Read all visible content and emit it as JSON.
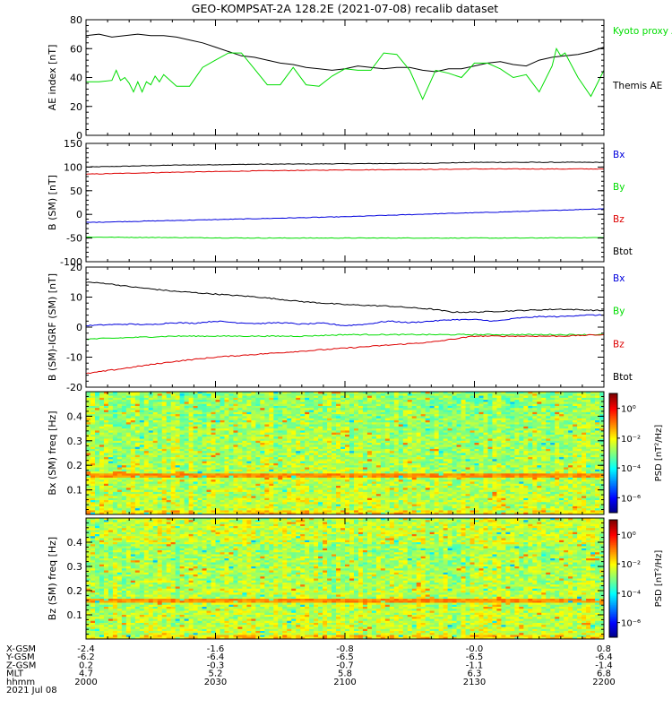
{
  "title": "GEO-KOMPSAT-2A 128.2E (2021-07-08) recalib dataset",
  "colors": {
    "black": "#000000",
    "green": "#00dd00",
    "red": "#dd0000",
    "blue": "#0000dd"
  },
  "x_axis": {
    "ticks": [
      "2000",
      "2030",
      "2100",
      "2130",
      "2200"
    ],
    "rows": [
      {
        "label": "X-GSM",
        "values": [
          "-2.4",
          "-1.6",
          "-0.8",
          "-0.0",
          "0.8"
        ]
      },
      {
        "label": "Y-GSM",
        "values": [
          "-6.2",
          "-6.4",
          "-6.5",
          "-6.5",
          "-6.4"
        ]
      },
      {
        "label": "Z-GSM",
        "values": [
          "0.2",
          "-0.3",
          "-0.7",
          "-1.1",
          "-1.4"
        ]
      },
      {
        "label": "MLT",
        "values": [
          "4.7",
          "5.2",
          "5.8",
          "6.3",
          "6.8"
        ]
      },
      {
        "label": "hhmm",
        "values": [
          "2000",
          "2030",
          "2100",
          "2130",
          "2200"
        ]
      }
    ],
    "date": "2021 Jul 08"
  },
  "chart_data": [
    {
      "type": "line",
      "ylabel": "AE index [nT]",
      "ylim": [
        0,
        80
      ],
      "yticks": [
        "0",
        "20",
        "40",
        "60",
        "80"
      ],
      "x_range_minutes": [
        0,
        120
      ],
      "legend": [
        {
          "text": "Kyoto proxy AE",
          "color": "#00dd00"
        },
        {
          "text": "Themis AE",
          "color": "#000000"
        }
      ],
      "series": [
        {
          "name": "Themis AE",
          "color": "#000000",
          "x": [
            0,
            3,
            6,
            9,
            12,
            15,
            18,
            21,
            24,
            27,
            30,
            33,
            36,
            39,
            42,
            45,
            48,
            51,
            54,
            57,
            60,
            63,
            66,
            69,
            72,
            75,
            78,
            81,
            84,
            87,
            90,
            93,
            96,
            99,
            102,
            105,
            108,
            111,
            114,
            117,
            120
          ],
          "values": [
            69,
            70,
            68,
            69,
            70,
            69,
            69,
            68,
            66,
            64,
            61,
            58,
            55,
            54,
            52,
            50,
            49,
            47,
            46,
            45,
            46,
            48,
            47,
            46,
            47,
            47,
            45,
            44,
            46,
            46,
            48,
            50,
            51,
            49,
            48,
            52,
            54,
            55,
            56,
            58,
            61
          ]
        },
        {
          "name": "Kyoto proxy AE",
          "color": "#00dd00",
          "x": [
            0,
            3,
            6,
            7,
            8,
            9,
            10,
            11,
            12,
            13,
            14,
            15,
            16,
            17,
            18,
            21,
            24,
            27,
            30,
            33,
            36,
            39,
            42,
            45,
            48,
            51,
            54,
            57,
            60,
            63,
            66,
            69,
            72,
            75,
            78,
            81,
            84,
            87,
            90,
            93,
            96,
            99,
            102,
            105,
            108,
            109,
            110,
            111,
            114,
            117,
            120
          ],
          "values": [
            37,
            37,
            38,
            45,
            38,
            40,
            36,
            30,
            37,
            30,
            37,
            35,
            41,
            37,
            42,
            34,
            34,
            47,
            52,
            57,
            57,
            46,
            35,
            35,
            47,
            35,
            34,
            41,
            46,
            45,
            45,
            57,
            56,
            45,
            25,
            45,
            43,
            40,
            50,
            50,
            46,
            40,
            42,
            30,
            48,
            60,
            55,
            57,
            40,
            27,
            45
          ]
        }
      ]
    },
    {
      "type": "line",
      "ylabel": "B (SM) [nT]",
      "ylim": [
        -100,
        150
      ],
      "yticks": [
        "-100",
        "-50",
        "0",
        "50",
        "100",
        "150"
      ],
      "x_range_minutes": [
        0,
        120
      ],
      "legend": [
        {
          "text": "Bx",
          "color": "#0000dd"
        },
        {
          "text": "By",
          "color": "#00dd00"
        },
        {
          "text": "Bz",
          "color": "#dd0000"
        },
        {
          "text": "Btot",
          "color": "#000000"
        }
      ],
      "series": [
        {
          "name": "Btot",
          "color": "#000000",
          "x": [
            0,
            10,
            20,
            40,
            60,
            80,
            90,
            100,
            120
          ],
          "values": [
            100,
            102,
            104,
            106,
            107,
            108,
            110,
            110,
            110
          ]
        },
        {
          "name": "Bz",
          "color": "#dd0000",
          "x": [
            0,
            10,
            20,
            40,
            60,
            80,
            90,
            100,
            120
          ],
          "values": [
            85,
            87,
            89,
            92,
            94,
            95,
            96,
            96,
            96
          ]
        },
        {
          "name": "Bx",
          "color": "#0000dd",
          "x": [
            0,
            20,
            40,
            60,
            80,
            100,
            120
          ],
          "values": [
            -17,
            -13,
            -9,
            -5,
            1,
            6,
            12
          ]
        },
        {
          "name": "By",
          "color": "#00dd00",
          "x": [
            0,
            20,
            40,
            60,
            80,
            100,
            120
          ],
          "values": [
            -48,
            -49,
            -50,
            -50,
            -50,
            -50,
            -49
          ]
        }
      ]
    },
    {
      "type": "line",
      "ylabel": "B (SM)-IGRF (SM) [nT]",
      "ylim": [
        -20,
        20
      ],
      "yticks": [
        "-20",
        "-10",
        "0",
        "10",
        "20"
      ],
      "x_range_minutes": [
        0,
        120
      ],
      "legend": [
        {
          "text": "Bx",
          "color": "#0000dd"
        },
        {
          "text": "By",
          "color": "#00dd00"
        },
        {
          "text": "Bz",
          "color": "#dd0000"
        },
        {
          "text": "Btot",
          "color": "#000000"
        }
      ],
      "series": [
        {
          "name": "Btot",
          "color": "#000000",
          "x": [
            0,
            5,
            10,
            20,
            30,
            40,
            50,
            60,
            70,
            80,
            85,
            90,
            100,
            110,
            120
          ],
          "values": [
            15,
            14.5,
            13.5,
            12,
            11,
            10,
            8.5,
            7.5,
            7,
            6,
            5,
            5,
            5.5,
            6,
            5.5
          ]
        },
        {
          "name": "Bx",
          "color": "#0000dd",
          "x": [
            0,
            5,
            10,
            15,
            20,
            25,
            30,
            35,
            40,
            45,
            50,
            55,
            60,
            65,
            70,
            75,
            80,
            85,
            90,
            95,
            100,
            105,
            110,
            115,
            120
          ],
          "values": [
            0.5,
            0.8,
            1,
            0.8,
            1.5,
            1.3,
            2,
            1.5,
            1.2,
            1.5,
            1,
            1.3,
            0.5,
            1,
            2,
            1.5,
            2,
            2.5,
            2.5,
            2,
            3,
            3.5,
            3.5,
            4,
            4
          ]
        },
        {
          "name": "By",
          "color": "#00dd00",
          "x": [
            0,
            10,
            20,
            30,
            40,
            50,
            60,
            70,
            80,
            90,
            100,
            110,
            120
          ],
          "values": [
            -4,
            -3.5,
            -3,
            -3,
            -3,
            -3,
            -2.5,
            -2.5,
            -2.5,
            -2.5,
            -2.5,
            -2.5,
            -2.5
          ]
        },
        {
          "name": "Bz",
          "color": "#dd0000",
          "x": [
            0,
            5,
            10,
            20,
            30,
            40,
            50,
            60,
            70,
            80,
            90,
            100,
            110,
            120
          ],
          "values": [
            -15.5,
            -14.5,
            -13.5,
            -11.5,
            -10,
            -9,
            -8,
            -7,
            -6,
            -5,
            -3,
            -3,
            -3,
            -2.5
          ]
        }
      ]
    },
    {
      "type": "heatmap",
      "ylabel": "Bx (SM) freq [Hz]",
      "ylim": [
        0,
        0.5
      ],
      "yticks": [
        "0.1",
        "0.2",
        "0.3",
        "0.4"
      ],
      "colorbar": {
        "label": "PSD [nT²/Hz]",
        "ticks": [
          "10⁰",
          "10⁻²",
          "10⁻⁴",
          "10⁻⁶"
        ],
        "range_log10": [
          -7,
          1
        ]
      },
      "band_hz": 0.165
    },
    {
      "type": "heatmap",
      "ylabel": "Bz (SM) freq [Hz]",
      "ylim": [
        0,
        0.5
      ],
      "yticks": [
        "0.1",
        "0.2",
        "0.3",
        "0.4"
      ],
      "colorbar": {
        "label": "PSD [nT²/Hz]",
        "ticks": [
          "10⁰",
          "10⁻²",
          "10⁻⁴",
          "10⁻⁶"
        ],
        "range_log10": [
          -7,
          1
        ]
      },
      "band_hz": 0.17
    }
  ]
}
